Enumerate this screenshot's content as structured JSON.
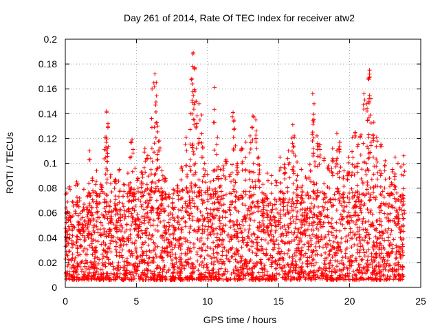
{
  "chart_data": {
    "type": "scatter",
    "title": "Day 261 of 2014, Rate Of TEC Index for receiver atw2",
    "xlabel": "GPS time / hours",
    "ylabel": "ROTI / TECUs",
    "xlim": [
      0,
      25
    ],
    "ylim": [
      0,
      0.2
    ],
    "xticks": [
      "0",
      "5",
      "10",
      "15",
      "20",
      "25"
    ],
    "yticks": [
      "0",
      "0.02",
      "0.04",
      "0.06",
      "0.08",
      "0.1",
      "0.12",
      "0.14",
      "0.16",
      "0.18",
      "0.2"
    ],
    "grid": true,
    "marker": "+",
    "color": "#ff0000",
    "series": [
      {
        "name": "atw2",
        "x": [
          0.1,
          0.3,
          0.5,
          0.8,
          1.0,
          1.3,
          1.6,
          1.7,
          1.9,
          2.2,
          2.5,
          2.8,
          2.9,
          3.0,
          3.2,
          3.5,
          3.8,
          4.1,
          4.4,
          4.6,
          4.7,
          4.9,
          5.1,
          5.4,
          5.6,
          5.8,
          6.0,
          6.1,
          6.3,
          6.4,
          6.5,
          6.6,
          6.8,
          7.0,
          7.3,
          7.6,
          7.9,
          8.2,
          8.5,
          8.8,
          8.9,
          9.0,
          9.1,
          9.2,
          9.4,
          9.6,
          9.8,
          10.0,
          10.2,
          10.4,
          10.5,
          10.7,
          10.9,
          11.1,
          11.3,
          11.6,
          11.8,
          11.9,
          12.1,
          12.4,
          12.7,
          13.0,
          13.2,
          13.4,
          13.6,
          13.9,
          14.2,
          14.5,
          14.8,
          15.1,
          15.4,
          15.7,
          16.0,
          16.1,
          16.3,
          16.6,
          16.9,
          17.2,
          17.4,
          17.5,
          17.7,
          17.9,
          18.2,
          18.5,
          18.8,
          19.1,
          19.3,
          19.6,
          19.9,
          20.2,
          20.4,
          20.6,
          20.8,
          21.0,
          21.2,
          21.3,
          21.4,
          21.5,
          21.7,
          21.9,
          22.2,
          22.5,
          22.8,
          23.0,
          23.2,
          23.4,
          23.6,
          23.8
        ],
        "y": [
          0.076,
          0.081,
          0.069,
          0.085,
          0.072,
          0.079,
          0.074,
          0.11,
          0.088,
          0.094,
          0.083,
          0.121,
          0.142,
          0.132,
          0.091,
          0.087,
          0.095,
          0.083,
          0.092,
          0.117,
          0.119,
          0.096,
          0.088,
          0.093,
          0.112,
          0.106,
          0.104,
          0.16,
          0.172,
          0.165,
          0.13,
          0.118,
          0.094,
          0.088,
          0.075,
          0.079,
          0.082,
          0.097,
          0.121,
          0.14,
          0.168,
          0.189,
          0.177,
          0.15,
          0.148,
          0.139,
          0.1,
          0.091,
          0.085,
          0.094,
          0.161,
          0.121,
          0.095,
          0.098,
          0.103,
          0.091,
          0.141,
          0.128,
          0.1,
          0.112,
          0.117,
          0.122,
          0.138,
          0.135,
          0.105,
          0.083,
          0.092,
          0.09,
          0.086,
          0.105,
          0.099,
          0.11,
          0.131,
          0.122,
          0.101,
          0.095,
          0.089,
          0.099,
          0.156,
          0.148,
          0.122,
          0.115,
          0.104,
          0.098,
          0.112,
          0.124,
          0.117,
          0.094,
          0.105,
          0.121,
          0.125,
          0.115,
          0.123,
          0.156,
          0.148,
          0.168,
          0.175,
          0.152,
          0.133,
          0.121,
          0.115,
          0.102,
          0.088,
          0.095,
          0.105,
          0.1,
          0.097,
          0.106
        ]
      }
    ]
  }
}
